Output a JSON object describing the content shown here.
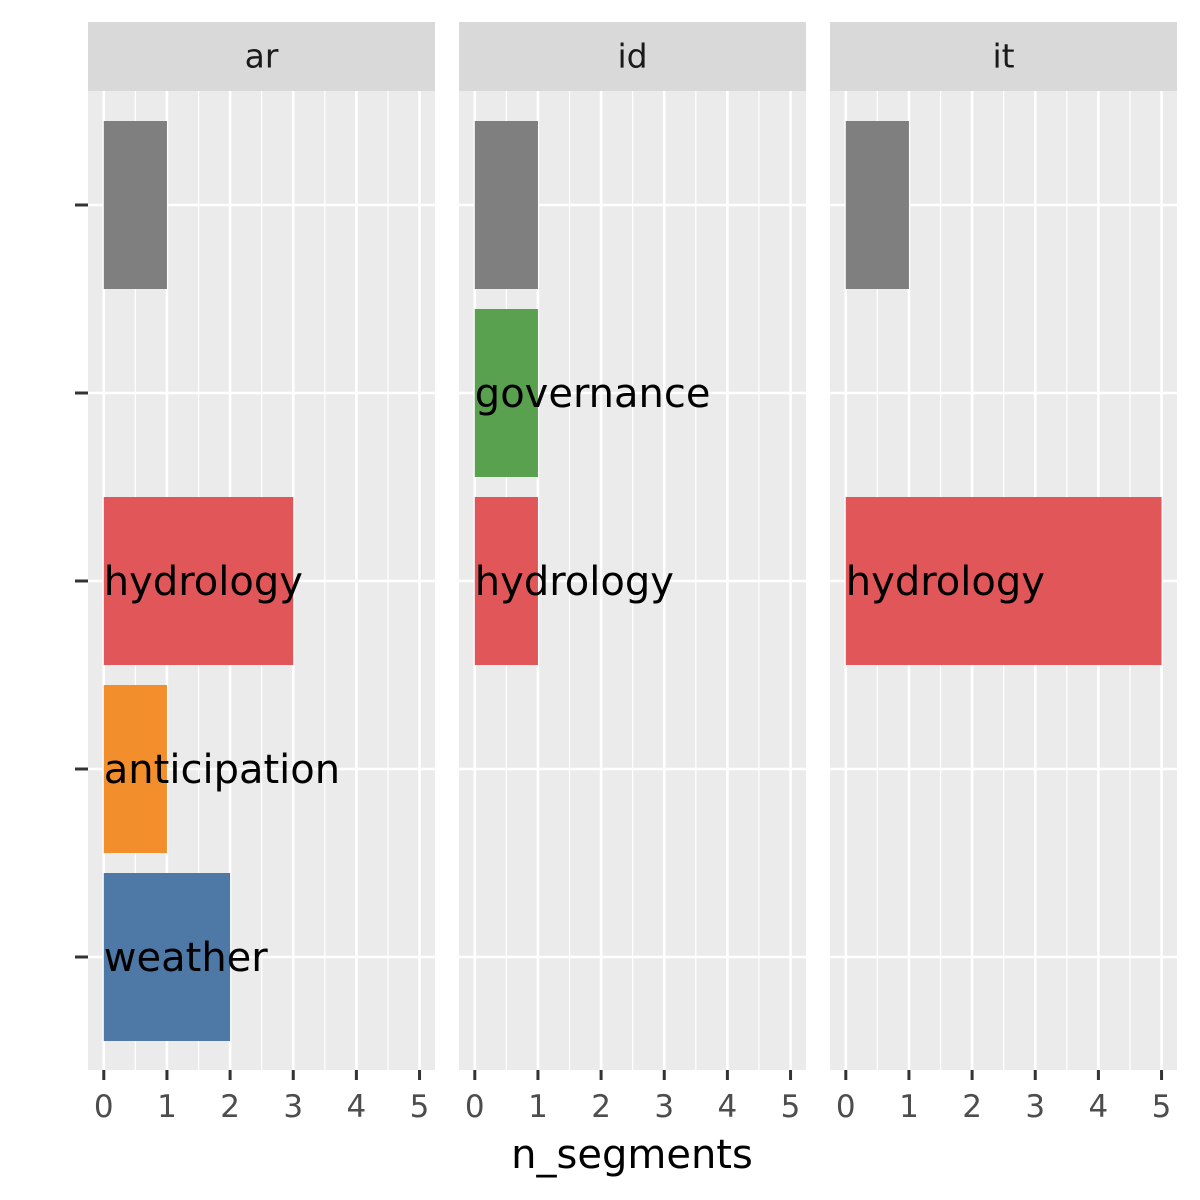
{
  "chart_data": {
    "type": "bar",
    "orientation": "horizontal",
    "xlabel": "n_segments",
    "ylabel": "",
    "xlim": [
      0,
      5
    ],
    "x_ticks": [
      0,
      1,
      2,
      3,
      4,
      5
    ],
    "y_categories": [
      "",
      "",
      "",
      "",
      ""
    ],
    "grid": true,
    "legend": "none",
    "colors": {
      "none": "#7f7f7f",
      "governance": "#59a14f",
      "hydrology": "#e15759",
      "anticipation": "#f28e2b",
      "weather": "#4e79a7"
    },
    "facets": [
      {
        "name": "ar",
        "bars": [
          {
            "row": 0,
            "label": "",
            "color_key": "none",
            "value": 1
          },
          {
            "row": 2,
            "label": "hydrology",
            "color_key": "hydrology",
            "value": 3
          },
          {
            "row": 3,
            "label": "anticipation",
            "color_key": "anticipation",
            "value": 1
          },
          {
            "row": 4,
            "label": "weather",
            "color_key": "weather",
            "value": 2
          }
        ]
      },
      {
        "name": "id",
        "bars": [
          {
            "row": 0,
            "label": "",
            "color_key": "none",
            "value": 1
          },
          {
            "row": 1,
            "label": "governance",
            "color_key": "governance",
            "value": 1
          },
          {
            "row": 2,
            "label": "hydrology",
            "color_key": "hydrology",
            "value": 1
          }
        ]
      },
      {
        "name": "it",
        "bars": [
          {
            "row": 0,
            "label": "",
            "color_key": "none",
            "value": 1
          },
          {
            "row": 2,
            "label": "hydrology",
            "color_key": "hydrology",
            "value": 5
          }
        ]
      }
    ]
  }
}
